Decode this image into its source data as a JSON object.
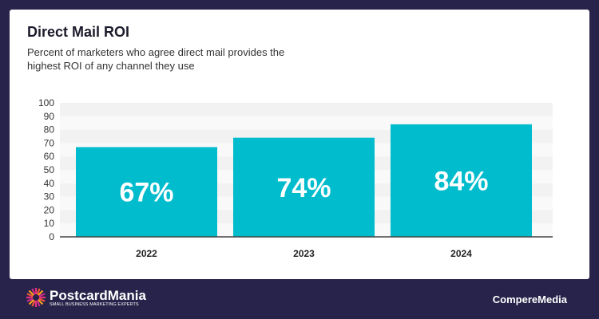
{
  "colors": {
    "background": "#28234a",
    "bar": "#00bccd",
    "label": "#ffffff"
  },
  "chart_data": {
    "type": "bar",
    "title": "Direct Mail ROI",
    "subtitle": "Percent of marketers who agree direct mail provides the highest ROI of any channel they use",
    "categories": [
      "2022",
      "2023",
      "2024"
    ],
    "values": [
      67,
      74,
      84
    ],
    "data_labels": [
      "67%",
      "74%",
      "84%"
    ],
    "ylim": [
      0,
      100
    ],
    "yticks": [
      0,
      10,
      20,
      30,
      40,
      50,
      60,
      70,
      80,
      90,
      100
    ],
    "grid": "alternating horizontal bands",
    "legend": "none"
  },
  "footer": {
    "brand": "PostcardMania",
    "tagline": "SMALL BUSINESS MARKETING EXPERTS",
    "partner": "CompereMedia",
    "logo_icon": "sunburst-icon"
  }
}
